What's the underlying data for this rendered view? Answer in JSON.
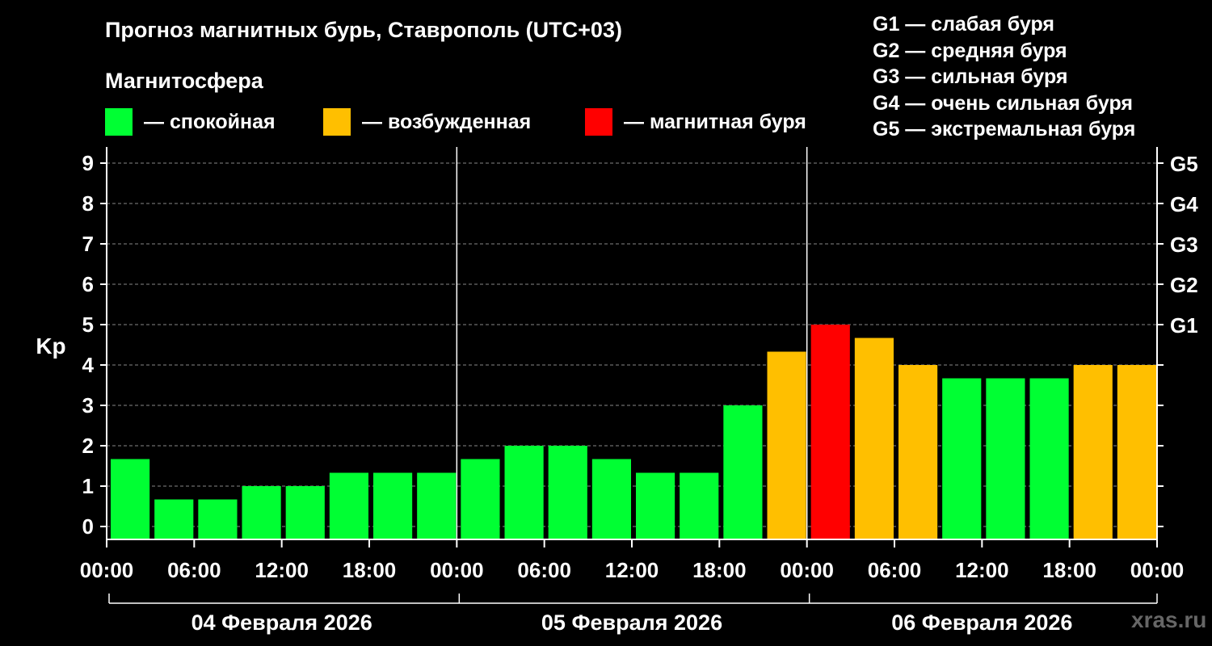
{
  "title": "Прогноз магнитных бурь, Ставрополь (UTC+03)",
  "subtitle": "Магнитосфера",
  "legend": [
    {
      "label": "— спокойная",
      "color": "#00ff33"
    },
    {
      "label": "— возбужденная",
      "color": "#ffbf00"
    },
    {
      "label": "— магнитная буря",
      "color": "#ff0000"
    }
  ],
  "storm_levels": [
    "G1 — слабая буря",
    "G2 — средняя буря",
    "G3 — сильная буря",
    "G4 — очень сильная буря",
    "G5 — экстремальная буря"
  ],
  "watermark": "xras.ru",
  "chart_data": {
    "type": "bar",
    "ylabel": "Kp",
    "ylim": [
      0,
      9
    ],
    "yticks": [
      "0",
      "1",
      "2",
      "3",
      "4",
      "5",
      "6",
      "7",
      "8",
      "9"
    ],
    "right_ticks": [
      {
        "value": 5,
        "label": "G1"
      },
      {
        "value": 6,
        "label": "G2"
      },
      {
        "value": 7,
        "label": "G3"
      },
      {
        "value": 8,
        "label": "G4"
      },
      {
        "value": 9,
        "label": "G5"
      }
    ],
    "xticks": [
      "00:00",
      "06:00",
      "12:00",
      "18:00",
      "00:00",
      "06:00",
      "12:00",
      "18:00",
      "00:00",
      "06:00",
      "12:00",
      "18:00",
      "00:00"
    ],
    "days": [
      "04 Февраля 2026",
      "05 Февраля 2026",
      "06 Февраля 2026"
    ],
    "bars_per_day": 8,
    "grid": "dashed horizontal at each integer Kp",
    "values": [
      1.67,
      0.67,
      0.67,
      1.0,
      1.0,
      1.33,
      1.33,
      1.33,
      1.67,
      2.0,
      2.0,
      1.67,
      1.33,
      1.33,
      3.0,
      4.33,
      5.0,
      4.67,
      4.0,
      3.67,
      3.67,
      3.67,
      4.0,
      4.0
    ],
    "colors": [
      "#00ff33",
      "#00ff33",
      "#00ff33",
      "#00ff33",
      "#00ff33",
      "#00ff33",
      "#00ff33",
      "#00ff33",
      "#00ff33",
      "#00ff33",
      "#00ff33",
      "#00ff33",
      "#00ff33",
      "#00ff33",
      "#00ff33",
      "#ffbf00",
      "#ff0000",
      "#ffbf00",
      "#ffbf00",
      "#00ff33",
      "#00ff33",
      "#00ff33",
      "#ffbf00",
      "#ffbf00"
    ]
  }
}
